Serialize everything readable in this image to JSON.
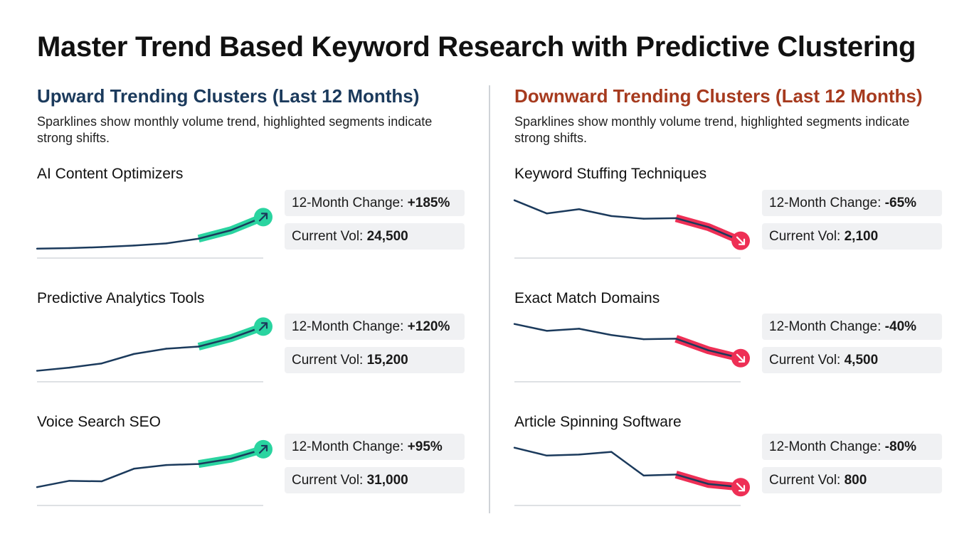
{
  "title": "Master Trend Based Keyword Research with Predictive Clustering",
  "colors": {
    "line": "#1b3a5c",
    "up_title": "#1b3a5c",
    "down_title": "#a63a1e",
    "up_highlight": "#2ad4a0",
    "down_highlight": "#ee2f55",
    "baseline": "#d4d7db",
    "stat_bg": "#f0f1f3"
  },
  "sections": [
    {
      "title": "Upward Trending Clusters (Last 12 Months)",
      "subtitle": "Sparklines show monthly volume trend, highlighted segments indicate strong shifts.",
      "direction": "up",
      "icon": "arrow-up-right-icon"
    },
    {
      "title": "Downward Trending Clusters (Last 12 Months)",
      "subtitle": "Sparklines show monthly volume trend, highlighted segments indicate strong shifts.",
      "direction": "down",
      "icon": "arrow-down-right-icon"
    }
  ],
  "chart_data": [
    {
      "type": "line",
      "section": "up",
      "name": "AI Content Optimizers",
      "change_label": "12-Month Change:",
      "change": "+185%",
      "volume_label": "Current Vol:",
      "volume": "24,500",
      "values": [
        3,
        4,
        6,
        9,
        13,
        22,
        38,
        63
      ],
      "ylim": [
        0,
        100
      ],
      "highlight_from": 5
    },
    {
      "type": "line",
      "section": "up",
      "name": "Predictive Analytics Tools",
      "change_label": "12-Month Change:",
      "change": "+120%",
      "volume_label": "Current Vol:",
      "volume": "15,200",
      "values": [
        6,
        12,
        20,
        38,
        48,
        52,
        68,
        90
      ],
      "ylim": [
        0,
        100
      ],
      "highlight_from": 5
    },
    {
      "type": "line",
      "section": "up",
      "name": "Voice Search SEO",
      "change_label": "12-Month Change:",
      "change": "+95%",
      "volume_label": "Current Vol:",
      "volume": "31,000",
      "values": [
        20,
        32,
        31,
        55,
        62,
        64,
        74,
        92
      ],
      "ylim": [
        0,
        100
      ],
      "highlight_from": 5
    },
    {
      "type": "line",
      "section": "down",
      "name": "Keyword Stuffing Techniques",
      "change_label": "12-Month Change:",
      "change": "-65%",
      "volume_label": "Current Vol:",
      "volume": "2,100",
      "values": [
        95,
        70,
        78,
        65,
        60,
        61,
        44,
        18
      ],
      "ylim": [
        0,
        100
      ],
      "highlight_from": 5
    },
    {
      "type": "line",
      "section": "down",
      "name": "Exact Match Domains",
      "change_label": "12-Month Change:",
      "change": "-40%",
      "volume_label": "Current Vol:",
      "volume": "4,500",
      "values": [
        95,
        82,
        86,
        74,
        66,
        67,
        45,
        30
      ],
      "ylim": [
        0,
        100
      ],
      "highlight_from": 5
    },
    {
      "type": "line",
      "section": "down",
      "name": "Article Spinning Software",
      "change_label": "12-Month Change:",
      "change": "-80%",
      "volume_label": "Current Vol:",
      "volume": "800",
      "values": [
        95,
        80,
        82,
        87,
        42,
        44,
        26,
        20
      ],
      "ylim": [
        0,
        100
      ],
      "highlight_from": 5
    }
  ]
}
